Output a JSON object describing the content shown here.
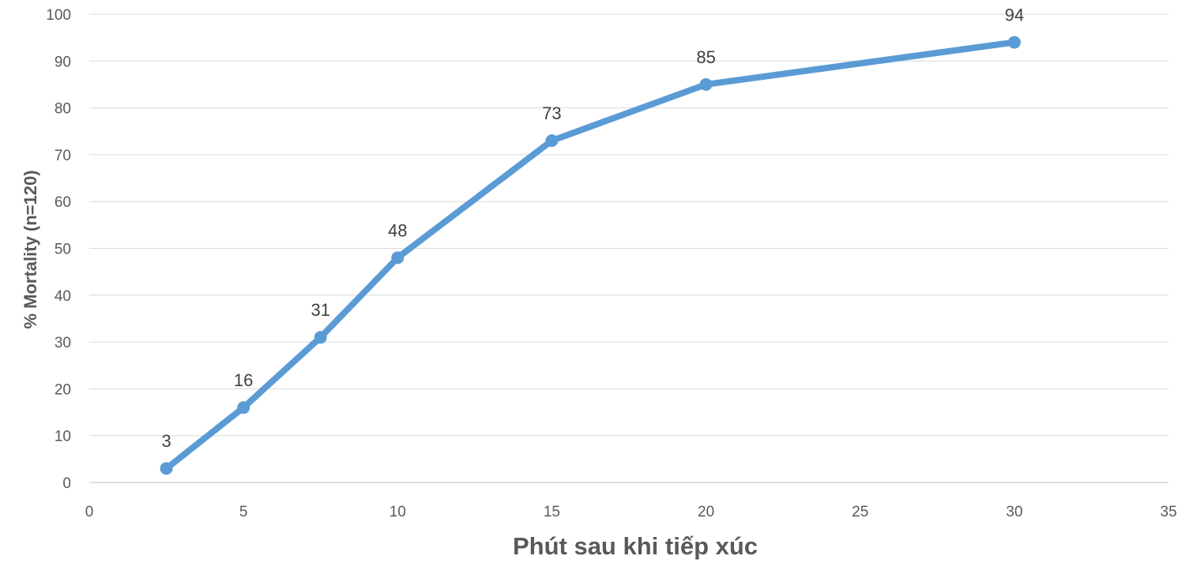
{
  "chart_data": {
    "type": "scatter",
    "mode": "lines+markers",
    "title": "",
    "xlabel": "Phút sau khi tiếp xúc",
    "ylabel": "% Mortality (n=120)",
    "xlim": [
      0,
      35
    ],
    "ylim": [
      0,
      100
    ],
    "x_ticks": [
      0,
      5,
      10,
      15,
      20,
      25,
      30,
      35
    ],
    "y_ticks": [
      0,
      10,
      20,
      30,
      40,
      50,
      60,
      70,
      80,
      90,
      100
    ],
    "grid": {
      "horizontal": true,
      "vertical": false
    },
    "legend": "none",
    "series": [
      {
        "color": "#5b9bd5",
        "x": [
          2.5,
          5,
          7.5,
          10,
          15,
          20,
          30
        ],
        "y": [
          3,
          16,
          31,
          48,
          73,
          85,
          94
        ],
        "data_labels": [
          "3",
          "16",
          "31",
          "48",
          "73",
          "85",
          "94"
        ]
      }
    ]
  }
}
